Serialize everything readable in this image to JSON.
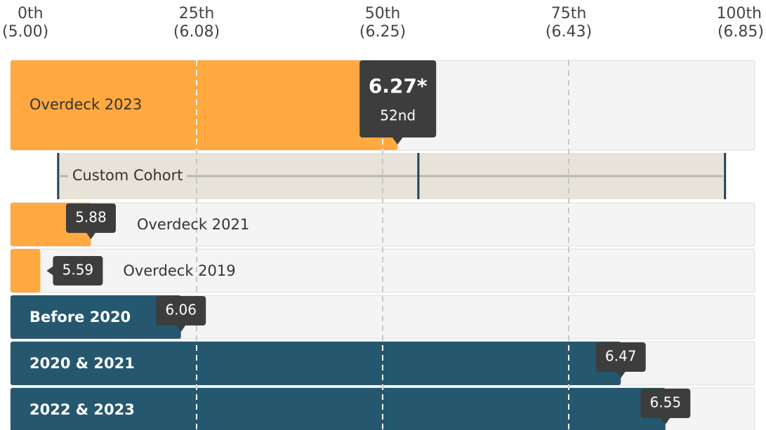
{
  "chart_data": {
    "type": "bar",
    "xlim": [
      0,
      100
    ],
    "xticks": [
      {
        "value": 0,
        "label": "0th",
        "score": "(5.00)"
      },
      {
        "value": 25,
        "label": "25th",
        "score": "(6.08)"
      },
      {
        "value": 50,
        "label": "50th",
        "score": "(6.25)"
      },
      {
        "value": 75,
        "label": "75th",
        "score": "(6.43)"
      },
      {
        "value": 100,
        "label": "100th",
        "score": "(6.85)"
      }
    ],
    "categories": [
      "Overdeck 2023",
      "Overdeck 2021",
      "Overdeck 2019",
      "Before 2020",
      "2020 & 2021",
      "2022 & 2023"
    ],
    "values": [
      52,
      10.8,
      4,
      22.9,
      82,
      88
    ],
    "scores": [
      "6.27*",
      "5.88",
      "5.59",
      "6.06",
      "6.47",
      "6.55"
    ],
    "percentile_label": "52nd",
    "colors": [
      "#ffa940",
      "#ffa940",
      "#ffa940",
      "#25586f",
      "#25586f",
      "#25586f"
    ],
    "cohort": {
      "label": "Custom Cohort",
      "min": 6.4,
      "median": 54.8,
      "max": 96,
      "color": "#e8e3d8",
      "line_color": "#1f4556"
    },
    "grid": true
  }
}
